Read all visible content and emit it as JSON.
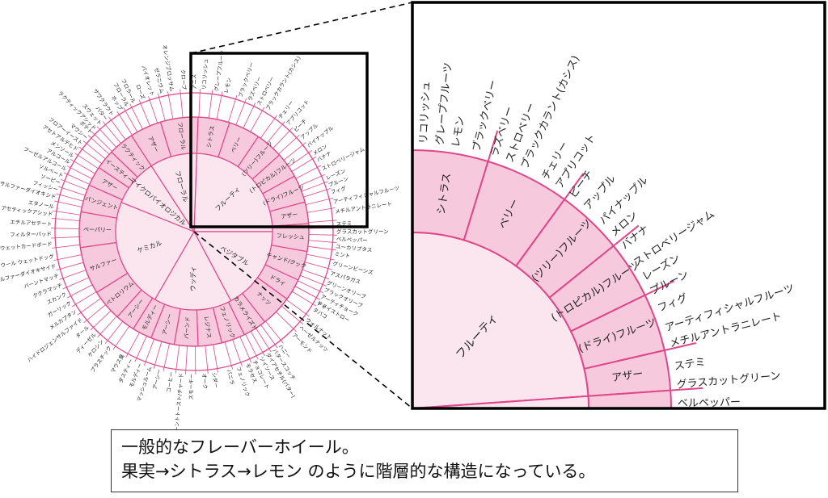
{
  "colors": {
    "line": "#e0468a",
    "inner_fill": "#fbe6ef",
    "mid_fill": "#f6c9dc",
    "outer_fill": "#ffffff",
    "frame": "#000000"
  },
  "wheel": {
    "inner": [
      {
        "label": "フルーティ",
        "a0": 272,
        "a1": 360
      },
      {
        "label": "ベジタブル",
        "a0": 0,
        "a1": 62
      },
      {
        "label": "ウッディ",
        "a0": 62,
        "a1": 120
      },
      {
        "label": "ケミカル",
        "a0": 120,
        "a1": 202
      },
      {
        "label": "マイクロバイオロジカル",
        "a0": 202,
        "a1": 237
      },
      {
        "label": "フローラル",
        "a0": 237,
        "a1": 272
      }
    ],
    "middle": [
      {
        "label": "シトラス",
        "a0": 272,
        "a1": 288
      },
      {
        "label": "ベリー",
        "a0": 288,
        "a1": 304
      },
      {
        "label": "(ツリー)フルーツ",
        "a0": 304,
        "a1": 318
      },
      {
        "label": "(トロピカル)フルーツ",
        "a0": 318,
        "a1": 331
      },
      {
        "label": "(ドライ)フルーツ",
        "a0": 331,
        "a1": 345
      },
      {
        "label": "アザー",
        "a0": 345,
        "a1": 356
      },
      {
        "label": "フレッシュ",
        "a0": 356,
        "a1": 10
      },
      {
        "label": "キャンド/クック",
        "a0": 10,
        "a1": 25
      },
      {
        "label": "ドライ",
        "a0": 25,
        "a1": 36
      },
      {
        "label": "ナッツ",
        "a0": 36,
        "a1": 52
      },
      {
        "label": "カラメライズド",
        "a0": 52,
        "a1": 64
      },
      {
        "label": "フェノリック",
        "a0": 64,
        "a1": 76
      },
      {
        "label": "レジナス",
        "a0": 76,
        "a1": 88
      },
      {
        "label": "バーンド",
        "a0": 88,
        "a1": 100
      },
      {
        "label": "アーシー",
        "a0": 100,
        "a1": 112
      },
      {
        "label": "モルディー",
        "a0": 112,
        "a1": 122
      },
      {
        "label": "アーシー",
        "a0": 122,
        "a1": 132
      },
      {
        "label": "ペトロリウム",
        "a0": 132,
        "a1": 148
      },
      {
        "label": "サルファー",
        "a0": 148,
        "a1": 172
      },
      {
        "label": "ペーパリー",
        "a0": 172,
        "a1": 190
      },
      {
        "label": "パンジェント",
        "a0": 190,
        "a1": 204
      },
      {
        "label": "アザー",
        "a0": 204,
        "a1": 214
      },
      {
        "label": "イースティー",
        "a0": 214,
        "a1": 224
      },
      {
        "label": "ラクティック",
        "a0": 224,
        "a1": 237
      },
      {
        "label": "アザー",
        "a0": 237,
        "a1": 253
      },
      {
        "label": "フローラル",
        "a0": 253,
        "a1": 272
      }
    ],
    "outer": [
      {
        "label": "ラクティックアシッド",
        "a": 226
      },
      {
        "label": "スウェット",
        "a": 229
      },
      {
        "label": "バター",
        "a": 232
      },
      {
        "label": "サワクラウト",
        "a": 235
      },
      {
        "label": "ホップ",
        "a": 239
      },
      {
        "label": "フローラル",
        "a": 242
      },
      {
        "label": "フロラール",
        "a": 245
      },
      {
        "label": "ローズ",
        "a": 249
      },
      {
        "label": "バイオレット",
        "a": 253
      },
      {
        "label": "ゼラニウム",
        "a": 257
      },
      {
        "label": "オレンジブロッサム",
        "a": 261
      },
      {
        "label": "クローブ",
        "a": 266
      },
      {
        "label": "アニス",
        "a": 270
      },
      {
        "label": "リコリッシュ",
        "a": 274
      },
      {
        "label": "グレープフルーツ",
        "a": 279
      },
      {
        "label": "レモン",
        "a": 283
      },
      {
        "label": "ブラックベリー",
        "a": 289
      },
      {
        "label": "ラズベリー",
        "a": 293
      },
      {
        "label": "ストロベリー",
        "a": 297
      },
      {
        "label": "ブラックカラント(カシス)",
        "a": 301
      },
      {
        "label": "チェリー",
        "a": 307
      },
      {
        "label": "アプリコット",
        "a": 311
      },
      {
        "label": "ピーチ",
        "a": 315
      },
      {
        "label": "アップル",
        "a": 319
      },
      {
        "label": "パイナップル",
        "a": 323
      },
      {
        "label": "メロン",
        "a": 327
      },
      {
        "label": "バナナ",
        "a": 330
      },
      {
        "label": "ストロベリージャム",
        "a": 334
      },
      {
        "label": "レーズン",
        "a": 338
      },
      {
        "label": "プルーン",
        "a": 341
      },
      {
        "label": "フィグ",
        "a": 344
      },
      {
        "label": "アーティフィシャルフルーツ",
        "a": 348
      },
      {
        "label": "メチルアントラニレート",
        "a": 352
      },
      {
        "label": "ステミ",
        "a": 357
      },
      {
        "label": "グラスカットグリーン",
        "a": 0
      },
      {
        "label": "ベルペッパー",
        "a": 3
      },
      {
        "label": "ユーカリプタス",
        "a": 6
      },
      {
        "label": "ミント",
        "a": 9
      },
      {
        "label": "グリーンビーンズ",
        "a": 13
      },
      {
        "label": "アスパラガス",
        "a": 17
      },
      {
        "label": "グリーンオリーブ",
        "a": 21
      },
      {
        "label": "ブラックオリーブ",
        "a": 24
      },
      {
        "label": "アーティチョーク",
        "a": 27
      },
      {
        "label": "ティ",
        "a": 30
      },
      {
        "label": "ドライストロー",
        "a": 30
      },
      {
        "label": "タバコ",
        "a": 33
      },
      {
        "label": "ウォルナット",
        "a": 38
      },
      {
        "label": "ヘーゼルナッツ",
        "a": 42
      },
      {
        "label": "アーモンド",
        "a": 46
      },
      {
        "label": "ハニー",
        "a": 53
      },
      {
        "label": "バタースコッチ",
        "a": 56
      },
      {
        "label": "ダイアセチル(バター)",
        "a": 59
      },
      {
        "label": "ソイソース",
        "a": 62
      },
      {
        "label": "チョコレート",
        "a": 65
      },
      {
        "label": "モラセス",
        "a": 68
      },
      {
        "label": "フェノリック",
        "a": 72
      },
      {
        "label": "バニラ",
        "a": 76
      },
      {
        "label": "シダー",
        "a": 82
      },
      {
        "label": "オーク",
        "a": 86
      },
      {
        "label": "スモーキー",
        "a": 91
      },
      {
        "label": "バーントトースト/チャード",
        "a": 95
      },
      {
        "label": "コーヒー",
        "a": 99
      },
      {
        "label": "アーシー",
        "a": 104
      },
      {
        "label": "マッシュルーム",
        "a": 108
      },
      {
        "label": "モルディー",
        "a": 112
      },
      {
        "label": "ダスティー",
        "a": 116
      },
      {
        "label": "マウス臭",
        "a": 120
      },
      {
        "label": "プラスチック",
        "a": 126
      },
      {
        "label": "ケロシン",
        "a": 130
      },
      {
        "label": "ディーゼル",
        "a": 134
      },
      {
        "label": "タール",
        "a": 138
      },
      {
        "label": "ハイドロジェンサルファイド",
        "a": 142
      },
      {
        "label": "メルカプタン",
        "a": 146
      },
      {
        "label": "ガーリック",
        "a": 150
      },
      {
        "label": "スカンク",
        "a": 154
      },
      {
        "label": "ククラマッチ",
        "a": 158
      },
      {
        "label": "バーントマッチ",
        "a": 162
      },
      {
        "label": "サルファーダイオキサイド",
        "a": 166
      },
      {
        "label": "ウェットウール ウェットドッグ",
        "a": 170
      },
      {
        "label": "ウェットカードボード",
        "a": 175
      },
      {
        "label": "フィルターパッド",
        "a": 179
      },
      {
        "label": "エチルアセテート",
        "a": 183
      },
      {
        "label": "アセティックアシッド",
        "a": 187
      },
      {
        "label": "エタノール",
        "a": 190
      },
      {
        "label": "サルファーダイオキシド",
        "a": 194
      },
      {
        "label": "フィッシー",
        "a": 197
      },
      {
        "label": "ソーピー",
        "a": 200
      },
      {
        "label": "ソルベート",
        "a": 203
      },
      {
        "label": "フーゼルアルコール",
        "a": 206
      },
      {
        "label": "アルコール",
        "a": 209
      },
      {
        "label": "メンソール",
        "a": 212
      },
      {
        "label": "アセトアルデヒド",
        "a": 215
      },
      {
        "label": "フロアーイースト",
        "a": 218
      },
      {
        "label": "マウシー",
        "a": 221
      },
      {
        "label": "ポテト",
        "a": 224
      }
    ]
  },
  "zoom": {
    "inner": "フルーティ",
    "middle": [
      "シトラス",
      "ベリー",
      "(ツリー)フルーツ",
      "(トロピカル)フルーツ",
      "(ドライ)フルーツ",
      "アザー",
      "フレッシュ"
    ],
    "outer": [
      "アニス",
      "リコリッシュ",
      "グレープフルーツ",
      "レモン",
      "ブラックベリー",
      "ラズベリー",
      "ストロベリー",
      "ブラックカラント(カシス)",
      "チェリー",
      "アプリコット",
      "ピーチ",
      "アップル",
      "パイナップル",
      "メロン",
      "バナナ",
      "ストロベリージャム",
      "レーズン",
      "プルーン",
      "フィグ",
      "アーティフィシャルフルーツ",
      "メチルアントラニレート",
      "ステミ",
      "グラスカットグリーン",
      "ベルペッパー",
      "ユーカリプタス"
    ]
  },
  "caption": {
    "line1": "一般的なフレーバーホイール。",
    "line2": "果実→シトラス→レモン のように階層的な構造になっている。"
  }
}
